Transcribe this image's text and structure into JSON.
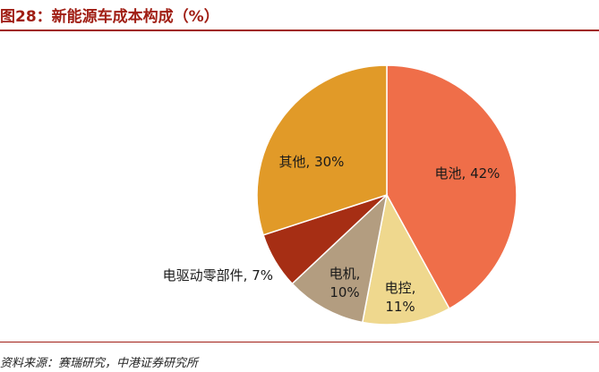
{
  "header": {
    "title": "图28：新能源车成本构成（%）"
  },
  "footer": {
    "source": "资料来源：赛瑞研究，中港证券研究所"
  },
  "chart_data": {
    "type": "pie",
    "title": "图28：新能源车成本构成（%）",
    "slices": [
      {
        "name": "电池",
        "value": 42,
        "label_lines": [
          "电池, 42%"
        ],
        "color": "#EF6E49"
      },
      {
        "name": "电控",
        "value": 11,
        "label_lines": [
          "电控,",
          "11%"
        ],
        "color": "#EFD88E"
      },
      {
        "name": "电机",
        "value": 10,
        "label_lines": [
          "电机,",
          "10%"
        ],
        "color": "#B39D80"
      },
      {
        "name": "电驱动零部件",
        "value": 7,
        "label_lines": [
          "电驱动零部件, 7%"
        ],
        "color": "#A62E14"
      },
      {
        "name": "其他",
        "value": 30,
        "label_lines": [
          "其他, 30%"
        ],
        "color": "#E19A28"
      }
    ],
    "start_angle_deg": 0,
    "direction": "clockwise",
    "slice_border_color": "#ffffff",
    "legend": "none"
  }
}
